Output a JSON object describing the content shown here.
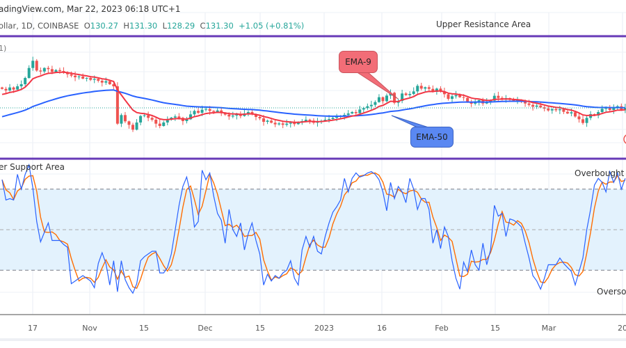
{
  "header": {
    "watermark_text": "adingView.com, Mar 22, 2023 06:18 UTC+1"
  },
  "symbol": {
    "name": "ollar, 1D, COINBASE",
    "open_label": "O",
    "open": "130.27",
    "high_label": "H",
    "high": "131.30",
    "low_label": "L",
    "low": "128.29",
    "close_label": "C",
    "close": "131.30",
    "change": "+1.05 (+0.81%)",
    "indicator_partial": "1)"
  },
  "annotations": {
    "upper_resistance": "Upper Resistance Area",
    "lower_support": "er Support Area",
    "overbought": "Overbought R",
    "oversold": "Oversol",
    "ema9_label": "EMA-9",
    "ema50_label": "EMA-50"
  },
  "colors": {
    "up": "#26a69a",
    "down": "#ef5350",
    "ema9": "#f23645",
    "ema50": "#2962ff",
    "stoch_k": "#2962ff",
    "stoch_d": "#ff6d00",
    "zone_line": "#673ab7",
    "band": "#e3f2fd"
  },
  "chart_data": [
    {
      "type": "candlestick",
      "title": "",
      "interval": "1D",
      "x_start": "2022-10-09",
      "x_end": "2023-03-21",
      "x_tick_labels": [
        "17",
        "Nov",
        "15",
        "Dec",
        "15",
        "2023",
        "16",
        "Feb",
        "15",
        "Mar",
        "20"
      ],
      "last_close": 131.3,
      "closes": [
        139.5,
        138.8,
        140.1,
        139.2,
        140.6,
        141.5,
        144.2,
        148.5,
        151.6,
        147.4,
        147.0,
        148.5,
        148.0,
        146.8,
        147.6,
        147.2,
        146.5,
        145.8,
        145.2,
        144.5,
        144.8,
        143.9,
        144.2,
        143.4,
        143.8,
        143.0,
        142.2,
        142.8,
        141.5,
        140.6,
        124.5,
        128.2,
        125.5,
        124.0,
        121.9,
        125.0,
        127.8,
        128.1,
        127.0,
        126.2,
        124.5,
        123.5,
        125.0,
        126.3,
        127.1,
        127.6,
        127.0,
        125.6,
        126.4,
        128.5,
        130.0,
        129.2,
        130.5,
        130.8,
        130.0,
        129.6,
        130.2,
        129.0,
        128.4,
        127.6,
        128.0,
        128.6,
        127.8,
        128.9,
        129.5,
        128.6,
        127.4,
        126.8,
        125.3,
        125.8,
        124.9,
        124.2,
        124.6,
        124.0,
        124.5,
        124.9,
        124.3,
        125.2,
        125.6,
        126.2,
        125.8,
        124.9,
        125.4,
        125.7,
        126.2,
        126.5,
        127.0,
        127.4,
        127.9,
        128.3,
        128.9,
        129.5,
        129.0,
        130.6,
        131.2,
        132.0,
        132.6,
        133.8,
        135.9,
        134.2,
        136.6,
        137.8,
        133.5,
        134.3,
        137.5,
        136.8,
        137.3,
        138.4,
        140.8,
        139.6,
        140.2,
        139.5,
        138.2,
        139.6,
        138.4,
        137.2,
        135.2,
        136.3,
        136.8,
        135.9,
        135.6,
        134.0,
        133.1,
        134.0,
        134.6,
        133.2,
        133.9,
        134.4,
        136.5,
        135.6,
        135.2,
        135.5,
        134.8,
        134.2,
        134.6,
        133.9,
        133.2,
        132.6,
        131.8,
        132.3,
        131.5,
        131.0,
        130.2,
        130.8,
        130.3,
        130.7,
        129.6,
        128.9,
        129.4,
        127.6,
        126.4,
        124.8,
        127.0,
        128.6,
        128.0,
        129.5,
        130.9,
        131.5,
        130.4,
        131.2,
        132.0,
        130.27,
        131.3
      ],
      "overlays": [
        "EMA 9",
        "EMA 50"
      ],
      "grid": true
    },
    {
      "type": "line",
      "title": "",
      "ylim": [
        0,
        100
      ],
      "levels": [
        80,
        50,
        20
      ],
      "k": [
        87,
        72,
        73,
        72,
        91,
        80,
        91,
        98,
        81,
        56,
        41,
        48,
        55,
        42,
        42,
        42,
        39,
        37,
        10,
        12,
        14,
        16,
        14,
        12,
        7,
        25,
        33,
        25,
        9,
        27,
        4,
        27,
        13,
        7,
        3,
        10,
        27,
        30,
        32,
        34,
        34,
        18,
        18,
        22,
        32,
        50,
        68,
        82,
        89,
        76,
        52,
        56,
        94,
        87,
        92,
        75,
        62,
        57,
        40,
        65,
        50,
        45,
        55,
        35,
        47,
        55,
        42,
        32,
        9,
        17,
        12,
        16,
        14,
        18,
        20,
        27,
        14,
        9,
        35,
        45,
        37,
        45,
        34,
        32,
        45,
        55,
        63,
        67,
        72,
        88,
        78,
        88,
        92,
        89,
        90,
        92,
        93,
        91,
        87,
        78,
        64,
        85,
        73,
        82,
        78,
        70,
        88,
        80,
        65,
        73,
        73,
        65,
        40,
        50,
        36,
        52,
        45,
        27,
        14,
        6,
        26,
        19,
        35,
        24,
        20,
        40,
        24,
        35,
        68,
        60,
        62,
        45,
        58,
        57,
        55,
        52,
        40,
        29,
        16,
        12,
        6,
        14,
        24,
        24,
        24,
        29,
        25,
        22,
        19,
        9,
        19,
        29,
        50,
        65,
        83,
        88,
        85,
        78,
        93,
        85,
        92,
        80,
        88
      ],
      "d_smoothing": 3,
      "grid": true
    }
  ]
}
